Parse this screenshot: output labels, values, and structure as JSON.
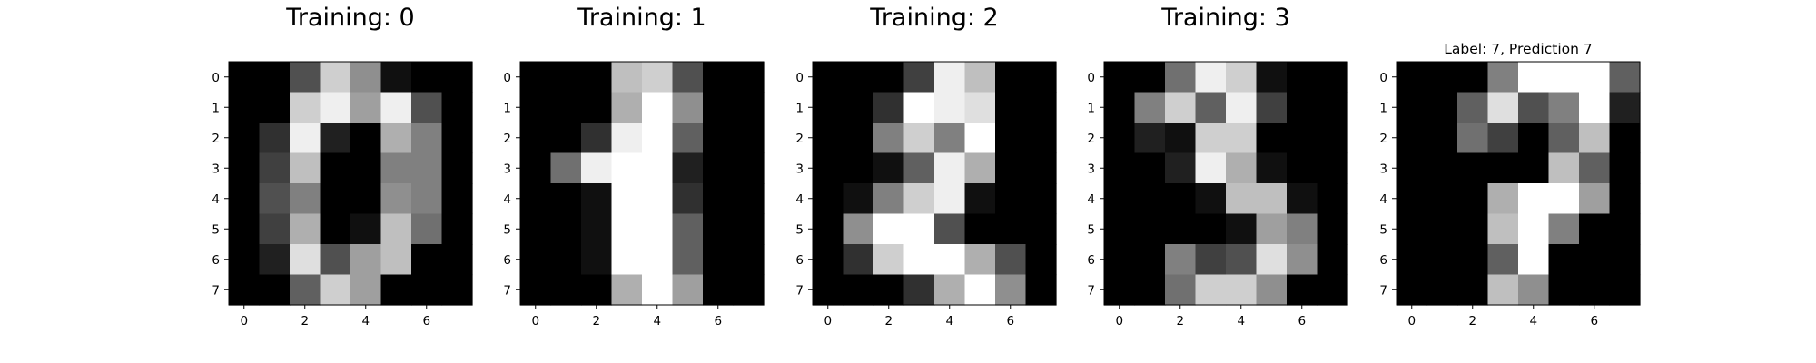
{
  "chart_data": [
    {
      "type": "heatmap",
      "title": "Training: 0",
      "colormap": "gray_r",
      "vmin": 0,
      "vmax": 16,
      "x_ticks": [
        "0",
        "2",
        "4",
        "6"
      ],
      "y_ticks": [
        "0",
        "1",
        "2",
        "3",
        "4",
        "5",
        "6",
        "7"
      ],
      "values": [
        [
          0,
          0,
          5,
          13,
          9,
          1,
          0,
          0
        ],
        [
          0,
          0,
          13,
          15,
          10,
          15,
          5,
          0
        ],
        [
          0,
          3,
          15,
          2,
          0,
          11,
          8,
          0
        ],
        [
          0,
          4,
          12,
          0,
          0,
          8,
          8,
          0
        ],
        [
          0,
          5,
          8,
          0,
          0,
          9,
          8,
          0
        ],
        [
          0,
          4,
          11,
          0,
          1,
          12,
          7,
          0
        ],
        [
          0,
          2,
          14,
          5,
          10,
          12,
          0,
          0
        ],
        [
          0,
          0,
          6,
          13,
          10,
          0,
          0,
          0
        ]
      ]
    },
    {
      "type": "heatmap",
      "title": "Training: 1",
      "colormap": "gray_r",
      "vmin": 0,
      "vmax": 16,
      "x_ticks": [
        "0",
        "2",
        "4",
        "6"
      ],
      "y_ticks": [
        "0",
        "1",
        "2",
        "3",
        "4",
        "5",
        "6",
        "7"
      ],
      "values": [
        [
          0,
          0,
          0,
          12,
          13,
          5,
          0,
          0
        ],
        [
          0,
          0,
          0,
          11,
          16,
          9,
          0,
          0
        ],
        [
          0,
          0,
          3,
          15,
          16,
          6,
          0,
          0
        ],
        [
          0,
          7,
          15,
          16,
          16,
          2,
          0,
          0
        ],
        [
          0,
          0,
          1,
          16,
          16,
          3,
          0,
          0
        ],
        [
          0,
          0,
          1,
          16,
          16,
          6,
          0,
          0
        ],
        [
          0,
          0,
          1,
          16,
          16,
          6,
          0,
          0
        ],
        [
          0,
          0,
          0,
          11,
          16,
          10,
          0,
          0
        ]
      ]
    },
    {
      "type": "heatmap",
      "title": "Training: 2",
      "colormap": "gray_r",
      "vmin": 0,
      "vmax": 16,
      "x_ticks": [
        "0",
        "2",
        "4",
        "6"
      ],
      "y_ticks": [
        "0",
        "1",
        "2",
        "3",
        "4",
        "5",
        "6",
        "7"
      ],
      "values": [
        [
          0,
          0,
          0,
          4,
          15,
          12,
          0,
          0
        ],
        [
          0,
          0,
          3,
          16,
          15,
          14,
          0,
          0
        ],
        [
          0,
          0,
          8,
          13,
          8,
          16,
          0,
          0
        ],
        [
          0,
          0,
          1,
          6,
          15,
          11,
          0,
          0
        ],
        [
          0,
          1,
          8,
          13,
          15,
          1,
          0,
          0
        ],
        [
          0,
          9,
          16,
          16,
          5,
          0,
          0,
          0
        ],
        [
          0,
          3,
          13,
          16,
          16,
          11,
          5,
          0
        ],
        [
          0,
          0,
          0,
          3,
          11,
          16,
          9,
          0
        ]
      ]
    },
    {
      "type": "heatmap",
      "title": "Training: 3",
      "colormap": "gray_r",
      "vmin": 0,
      "vmax": 16,
      "x_ticks": [
        "0",
        "2",
        "4",
        "6"
      ],
      "y_ticks": [
        "0",
        "1",
        "2",
        "3",
        "4",
        "5",
        "6",
        "7"
      ],
      "values": [
        [
          0,
          0,
          7,
          15,
          13,
          1,
          0,
          0
        ],
        [
          0,
          8,
          13,
          6,
          15,
          4,
          0,
          0
        ],
        [
          0,
          2,
          1,
          13,
          13,
          0,
          0,
          0
        ],
        [
          0,
          0,
          2,
          15,
          11,
          1,
          0,
          0
        ],
        [
          0,
          0,
          0,
          1,
          12,
          12,
          1,
          0
        ],
        [
          0,
          0,
          0,
          0,
          1,
          10,
          8,
          0
        ],
        [
          0,
          0,
          8,
          4,
          5,
          14,
          9,
          0
        ],
        [
          0,
          0,
          7,
          13,
          13,
          9,
          0,
          0
        ]
      ]
    },
    {
      "type": "heatmap",
      "title": "Label: 7, Prediction 7",
      "colormap": "gray_r",
      "vmin": 0,
      "vmax": 16,
      "x_ticks": [
        "0",
        "2",
        "4",
        "6"
      ],
      "y_ticks": [
        "0",
        "1",
        "2",
        "3",
        "4",
        "5",
        "6",
        "7"
      ],
      "values": [
        [
          0,
          0,
          0,
          8,
          16,
          16,
          16,
          6
        ],
        [
          0,
          0,
          6,
          14,
          5,
          8,
          16,
          2
        ],
        [
          0,
          0,
          7,
          4,
          0,
          6,
          12,
          0
        ],
        [
          0,
          0,
          0,
          0,
          0,
          12,
          6,
          0
        ],
        [
          0,
          0,
          0,
          11,
          16,
          16,
          10,
          0
        ],
        [
          0,
          0,
          0,
          12,
          16,
          8,
          0,
          0
        ],
        [
          0,
          0,
          0,
          6,
          16,
          0,
          0,
          0
        ],
        [
          0,
          0,
          0,
          12,
          9,
          0,
          0,
          0
        ]
      ]
    }
  ]
}
